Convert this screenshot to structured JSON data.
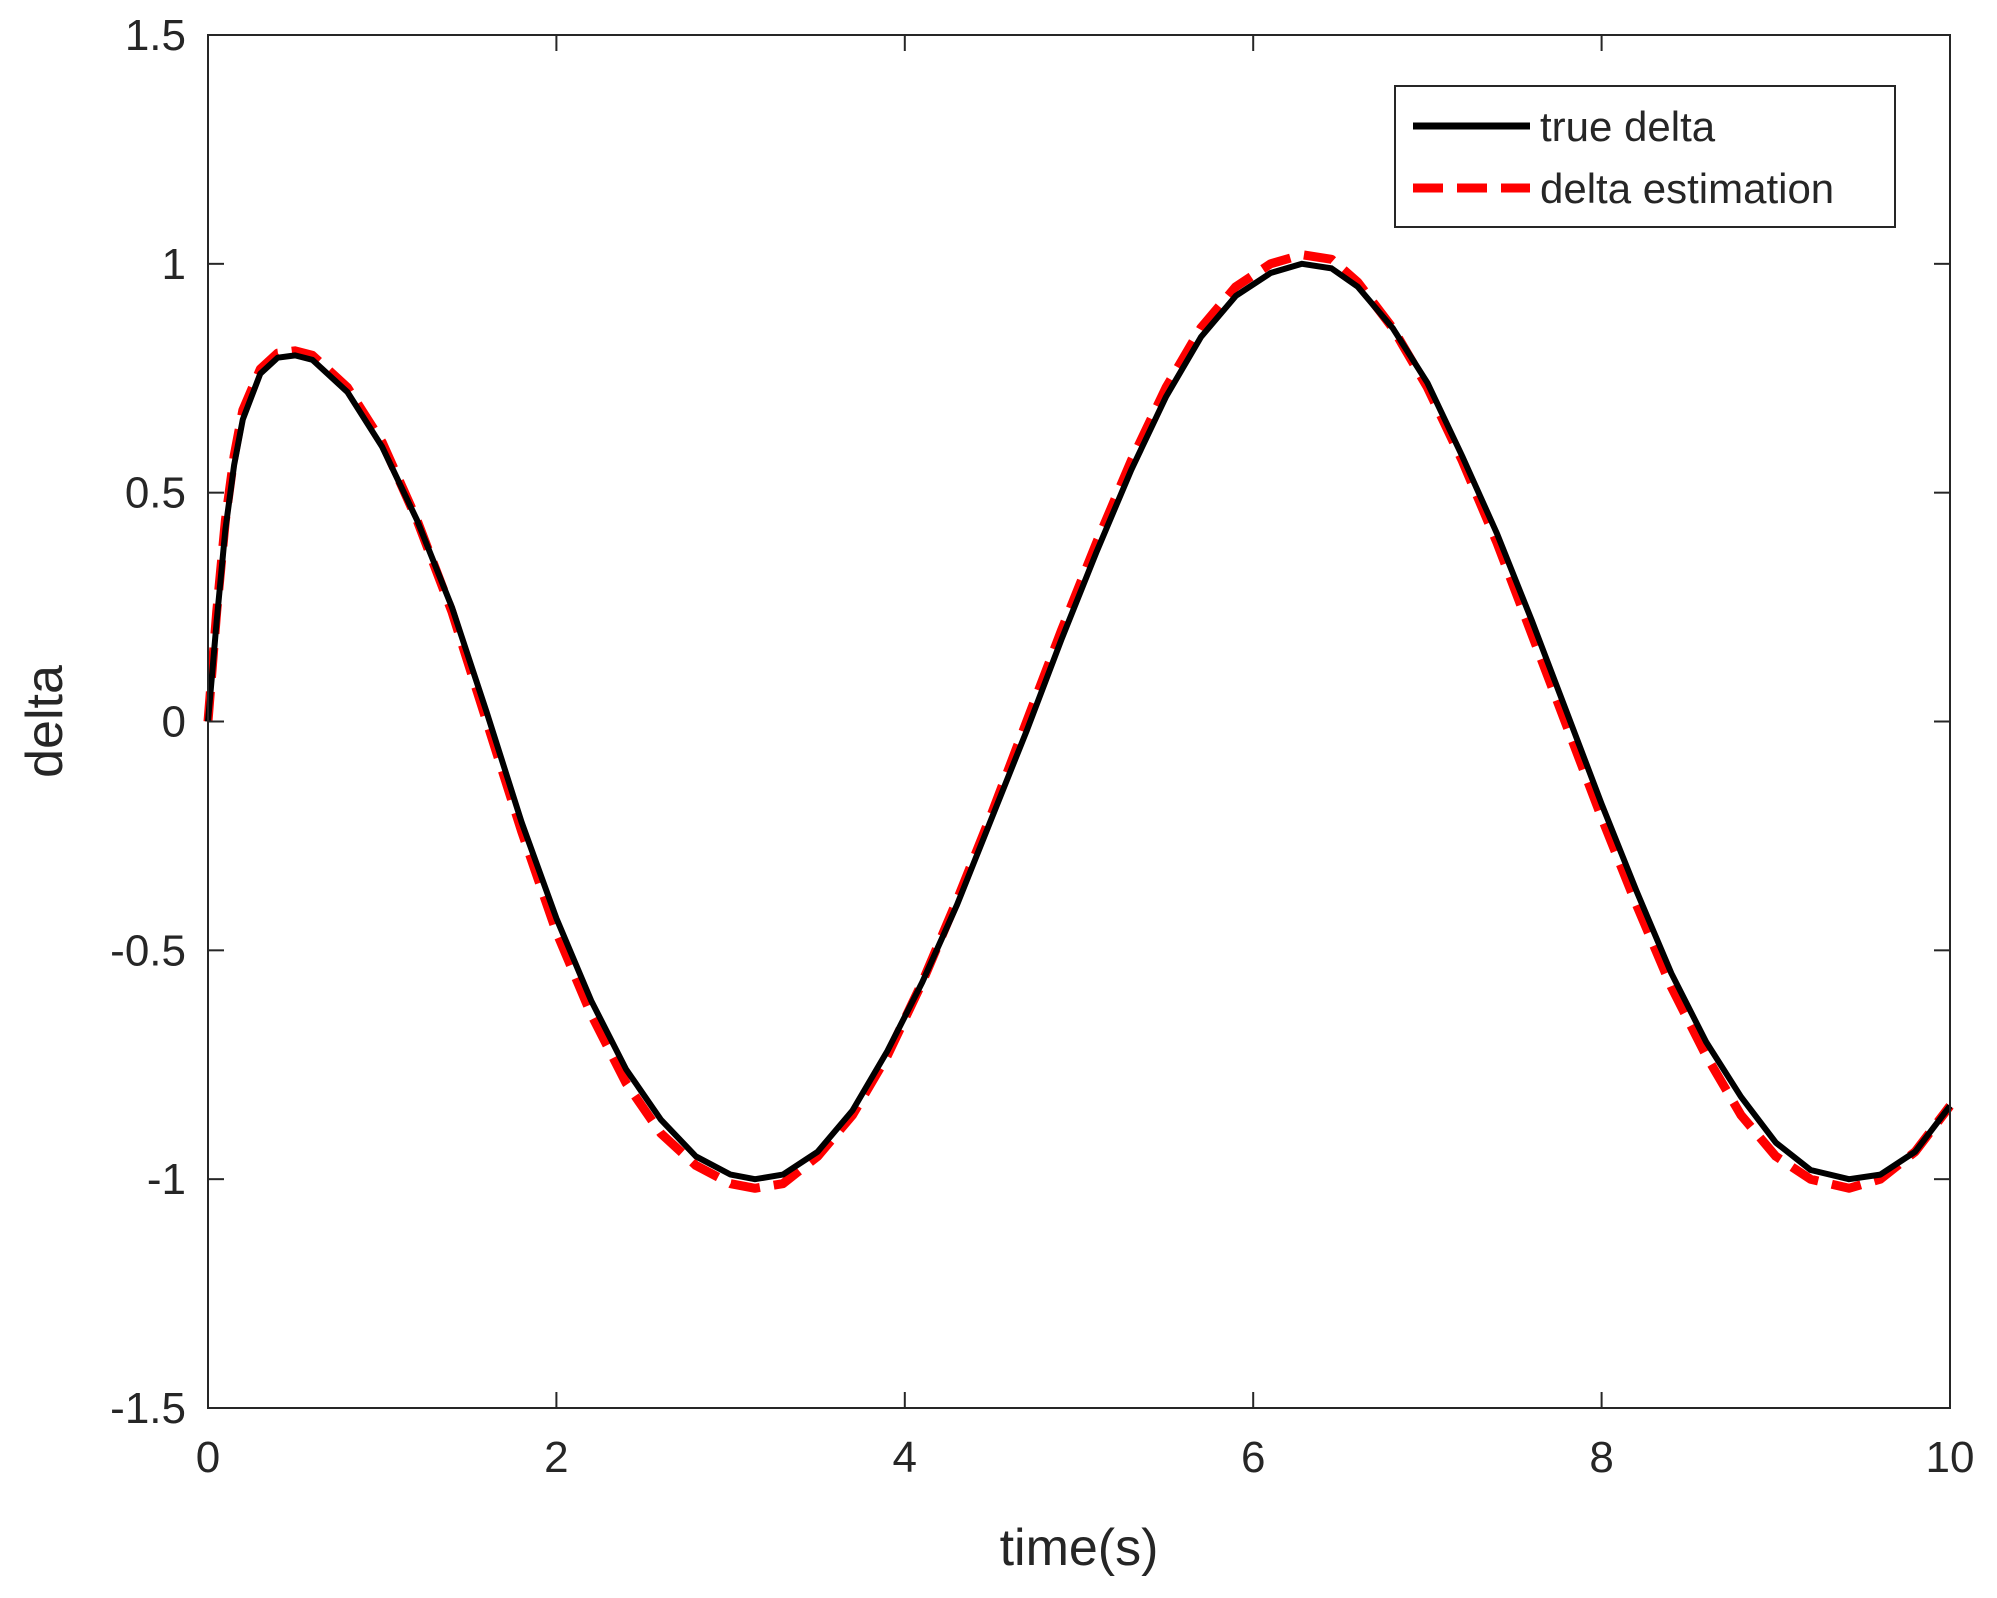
{
  "chart_data": {
    "type": "line",
    "title": "",
    "xlabel": "time(s)",
    "ylabel": "delta",
    "xlim": [
      0,
      10
    ],
    "ylim": [
      -1.5,
      1.5
    ],
    "xticks": [
      0,
      2,
      4,
      6,
      8,
      10
    ],
    "xtick_labels": [
      "0",
      "2",
      "4",
      "6",
      "8",
      "10"
    ],
    "yticks": [
      -1.5,
      -1,
      -0.5,
      0,
      0.5,
      1,
      1.5
    ],
    "ytick_labels": [
      "-1.5",
      "-1",
      "-0.5",
      "0",
      "0.5",
      "1",
      "1.5"
    ],
    "grid": false,
    "legend_position": "top-right",
    "series": [
      {
        "name": "true delta",
        "color": "#000000",
        "style": "solid",
        "x": [
          0,
          0.05,
          0.1,
          0.15,
          0.2,
          0.3,
          0.4,
          0.5,
          0.6,
          0.8,
          1.0,
          1.2,
          1.4,
          1.6,
          1.8,
          2.0,
          2.2,
          2.4,
          2.6,
          2.8,
          3.0,
          3.14,
          3.3,
          3.5,
          3.7,
          3.9,
          4.1,
          4.3,
          4.5,
          4.7,
          4.9,
          5.1,
          5.3,
          5.5,
          5.7,
          5.9,
          6.1,
          6.28,
          6.45,
          6.6,
          6.8,
          7.0,
          7.2,
          7.4,
          7.6,
          7.8,
          8.0,
          8.2,
          8.4,
          8.6,
          8.8,
          9.0,
          9.2,
          9.42,
          9.6,
          9.8,
          10.0
        ],
        "y": [
          0.0,
          0.22,
          0.42,
          0.56,
          0.66,
          0.76,
          0.795,
          0.8,
          0.79,
          0.72,
          0.6,
          0.44,
          0.25,
          0.02,
          -0.22,
          -0.43,
          -0.61,
          -0.76,
          -0.87,
          -0.95,
          -0.99,
          -1.0,
          -0.99,
          -0.94,
          -0.85,
          -0.72,
          -0.57,
          -0.4,
          -0.21,
          -0.02,
          0.18,
          0.37,
          0.55,
          0.71,
          0.84,
          0.93,
          0.98,
          1.0,
          0.99,
          0.95,
          0.86,
          0.74,
          0.58,
          0.41,
          0.22,
          0.02,
          -0.18,
          -0.37,
          -0.55,
          -0.7,
          -0.82,
          -0.92,
          -0.98,
          -1.0,
          -0.99,
          -0.94,
          -0.84
        ]
      },
      {
        "name": "delta estimation",
        "color": "#ff0000",
        "style": "dashed",
        "x": [
          0,
          0.05,
          0.1,
          0.15,
          0.2,
          0.3,
          0.4,
          0.5,
          0.6,
          0.8,
          1.0,
          1.2,
          1.4,
          1.6,
          1.8,
          2.0,
          2.2,
          2.4,
          2.6,
          2.8,
          3.0,
          3.14,
          3.3,
          3.5,
          3.7,
          3.9,
          4.1,
          4.3,
          4.5,
          4.7,
          4.9,
          5.1,
          5.3,
          5.5,
          5.7,
          5.9,
          6.1,
          6.28,
          6.45,
          6.6,
          6.8,
          7.0,
          7.2,
          7.4,
          7.6,
          7.8,
          8.0,
          8.2,
          8.4,
          8.6,
          8.8,
          9.0,
          9.2,
          9.42,
          9.6,
          9.8,
          10.0
        ],
        "y": [
          0.0,
          0.24,
          0.44,
          0.58,
          0.68,
          0.77,
          0.805,
          0.81,
          0.8,
          0.73,
          0.61,
          0.44,
          0.24,
          0.0,
          -0.24,
          -0.46,
          -0.64,
          -0.79,
          -0.9,
          -0.97,
          -1.01,
          -1.02,
          -1.01,
          -0.95,
          -0.86,
          -0.73,
          -0.57,
          -0.39,
          -0.2,
          0.0,
          0.2,
          0.39,
          0.57,
          0.73,
          0.86,
          0.95,
          1.0,
          1.02,
          1.01,
          0.96,
          0.86,
          0.73,
          0.57,
          0.39,
          0.19,
          -0.01,
          -0.21,
          -0.4,
          -0.58,
          -0.73,
          -0.86,
          -0.95,
          -1.0,
          -1.02,
          -1.0,
          -0.94,
          -0.84
        ]
      }
    ]
  }
}
